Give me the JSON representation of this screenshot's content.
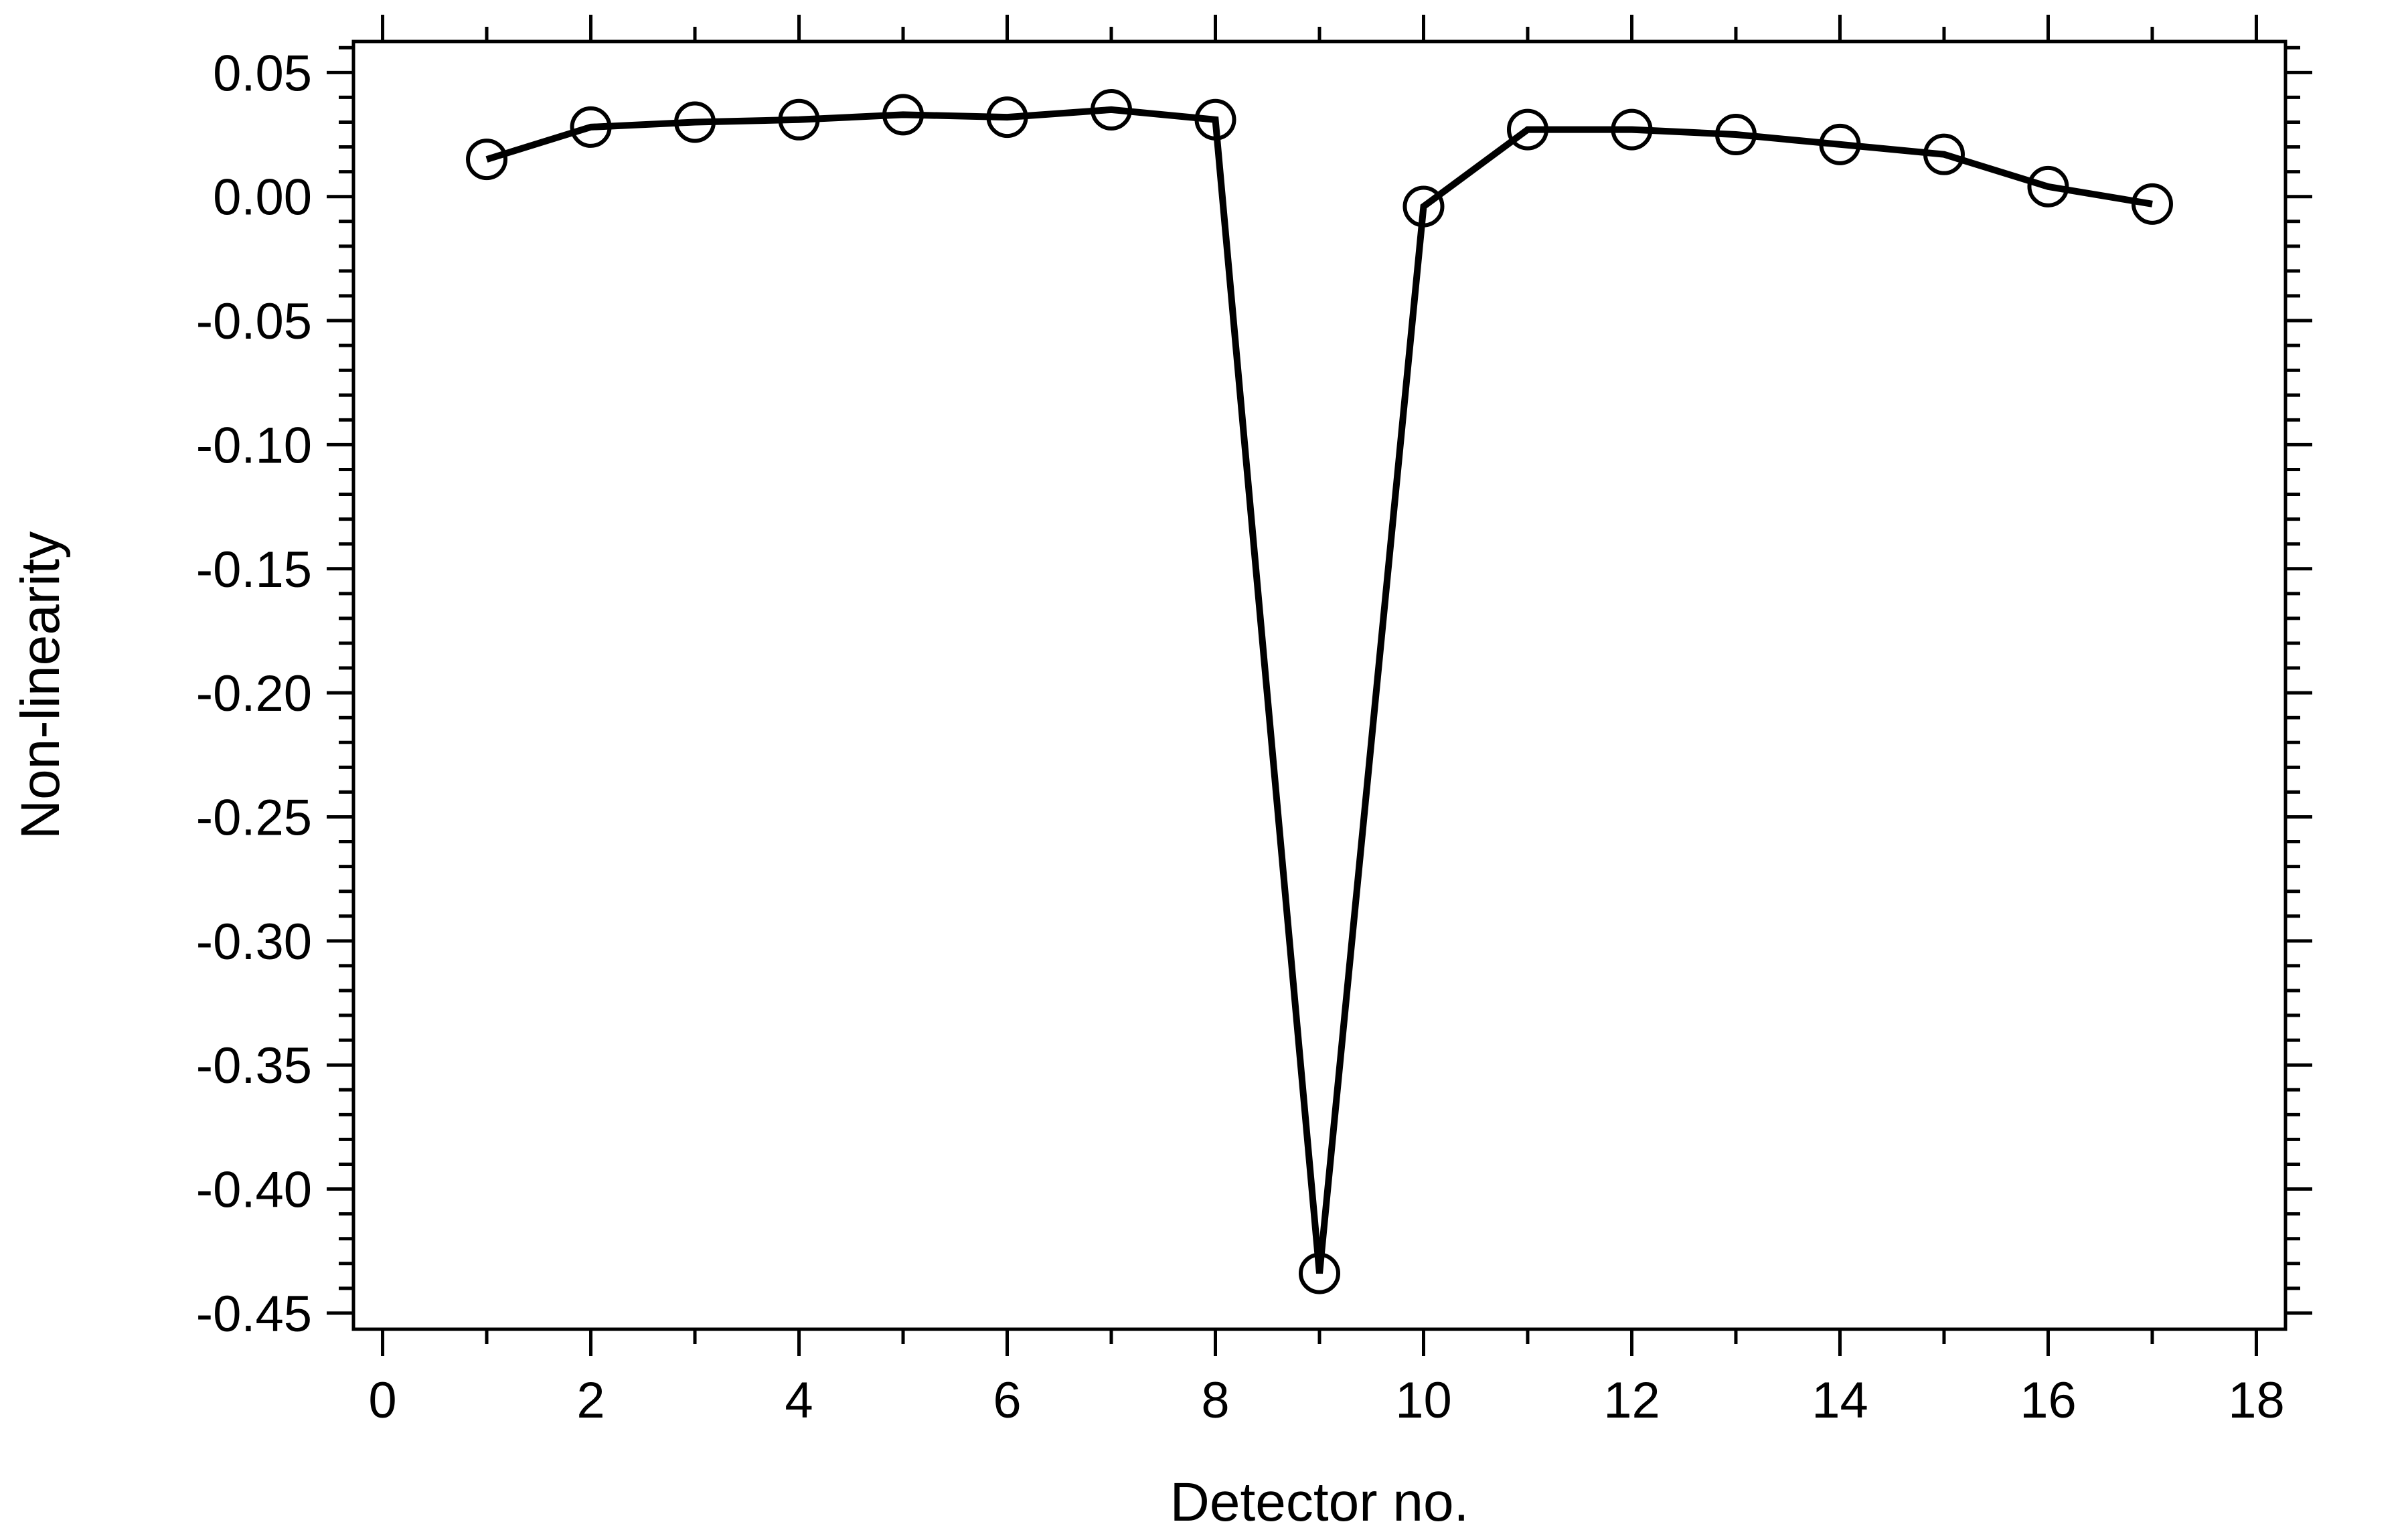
{
  "chart_data": {
    "type": "line",
    "title": "",
    "xlabel": "Detector no.",
    "ylabel": "Non-linearity",
    "xlim": [
      -0.28,
      18.28
    ],
    "ylim": [
      -0.4565,
      0.0625
    ],
    "x_ticks": [
      0,
      2,
      4,
      6,
      8,
      10,
      12,
      14,
      16,
      18
    ],
    "x_tick_labels": [
      "0",
      "2",
      "4",
      "6",
      "8",
      "10",
      "12",
      "14",
      "16",
      "18"
    ],
    "y_ticks": [
      0.05,
      0.0,
      -0.05,
      -0.1,
      -0.15,
      -0.2,
      -0.25,
      -0.3,
      -0.35,
      -0.4,
      -0.45
    ],
    "y_tick_labels": [
      "0.05",
      "0.00",
      "-0.05",
      "-0.10",
      "-0.15",
      "-0.20",
      "-0.25",
      "-0.30",
      "-0.35",
      "-0.40",
      "-0.45"
    ],
    "grid": false,
    "marker": "open-circle",
    "colors": {
      "line": "#000000",
      "marker": "#000000"
    },
    "series": [
      {
        "x": [
          1,
          2,
          3,
          4,
          5,
          6,
          7,
          8,
          9,
          10,
          11,
          12,
          13,
          14,
          15,
          16,
          17
        ],
        "values": [
          0.015,
          0.028,
          0.03,
          0.031,
          0.033,
          0.032,
          0.035,
          0.031,
          -0.434,
          -0.004,
          0.027,
          0.027,
          0.025,
          0.021,
          0.017,
          0.004,
          -0.003
        ]
      }
    ]
  }
}
